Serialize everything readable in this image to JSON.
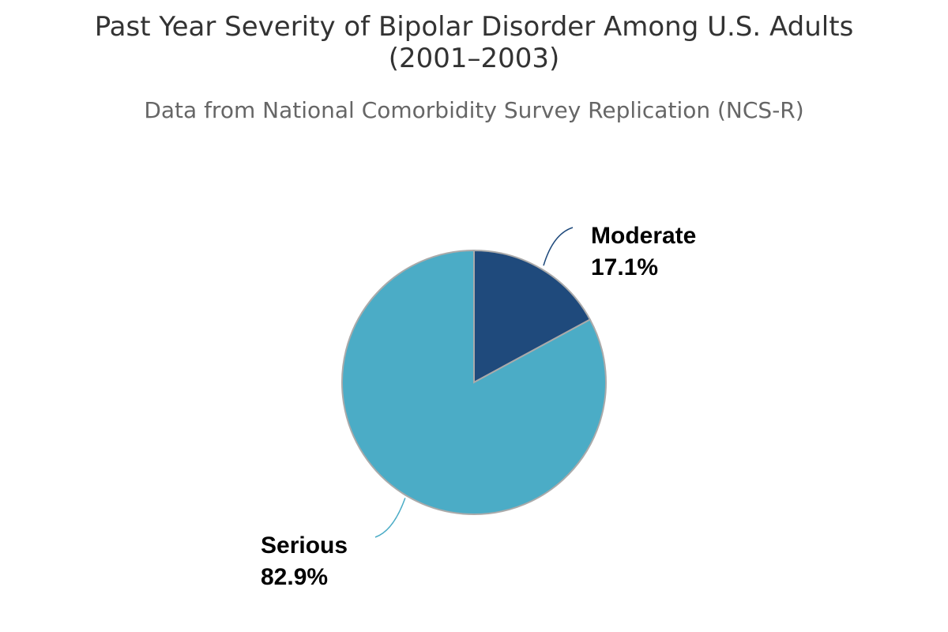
{
  "chart_data": {
    "type": "pie",
    "title": "Past Year Severity of Bipolar Disorder Among U.S. Adults (2001–2003)",
    "subtitle": "Data from National Comorbidity Survey Replication (NCS-R)",
    "slices": [
      {
        "name": "Moderate",
        "value": 17.1,
        "value_label": "17.1%",
        "color": "#1f4a7c"
      },
      {
        "name": "Serious",
        "value": 82.9,
        "value_label": "82.9%",
        "color": "#4bacc6"
      }
    ],
    "slice_border_color": "#aaaaaa",
    "legend": "none"
  }
}
